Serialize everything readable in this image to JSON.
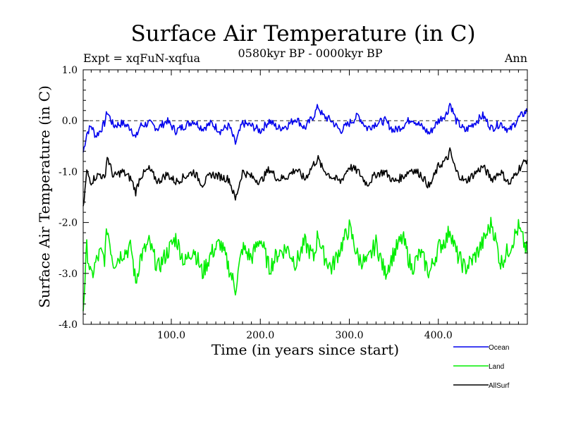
{
  "chart_data": {
    "type": "line",
    "title": "Surface Air Temperature (in C)",
    "subtitle_left": "Expt = xqFuN-xqfua",
    "subtitle_center": "0580kyr BP - 0000kyr BP",
    "subtitle_right": "Ann",
    "xlabel": "Time (in years since start)",
    "ylabel": "Surface Air Temperature (in C)",
    "xlim": [
      1,
      500
    ],
    "ylim": [
      -4.0,
      1.0
    ],
    "x_ticks": [
      100,
      200,
      300,
      400
    ],
    "x_tick_labels": [
      "100.0",
      "200.0",
      "300.0",
      "400.0"
    ],
    "y_ticks": [
      1.0,
      0.0,
      -1.0,
      -2.0,
      -3.0,
      -4.0
    ],
    "y_tick_labels": [
      "1.0",
      "0.0",
      "-1.0",
      "-2.0",
      "-3.0",
      "-4.0"
    ],
    "reference_line": 0.0,
    "legend_position": "bottom-right, outside plot",
    "series": [
      {
        "name": "Ocean",
        "color": "#0000ee",
        "x": [
          1,
          5,
          10,
          15,
          20,
          25,
          28,
          35,
          45,
          55,
          60,
          65,
          75,
          85,
          95,
          105,
          115,
          125,
          135,
          145,
          155,
          165,
          172,
          180,
          190,
          200,
          210,
          220,
          230,
          240,
          250,
          260,
          265,
          270,
          280,
          290,
          300,
          310,
          320,
          330,
          340,
          350,
          360,
          370,
          380,
          390,
          400,
          410,
          413,
          420,
          430,
          440,
          450,
          460,
          470,
          480,
          490,
          500
        ],
        "values": [
          -0.62,
          -0.25,
          -0.1,
          -0.3,
          -0.2,
          -0.05,
          0.18,
          -0.1,
          -0.05,
          -0.15,
          -0.35,
          -0.1,
          -0.05,
          -0.15,
          0.0,
          -0.2,
          -0.1,
          0.0,
          -0.15,
          -0.05,
          -0.2,
          -0.1,
          -0.45,
          -0.05,
          -0.1,
          -0.2,
          0.0,
          -0.15,
          -0.1,
          0.05,
          -0.15,
          0.1,
          0.28,
          0.1,
          0.0,
          -0.2,
          -0.05,
          0.1,
          -0.15,
          -0.05,
          0.0,
          -0.2,
          -0.1,
          0.05,
          -0.1,
          -0.25,
          0.0,
          0.15,
          0.35,
          0.0,
          -0.2,
          -0.05,
          0.1,
          -0.15,
          -0.05,
          -0.2,
          0.05,
          0.2
        ]
      },
      {
        "name": "Land",
        "color": "#00ee00",
        "x": [
          1,
          5,
          10,
          15,
          20,
          25,
          28,
          35,
          45,
          55,
          60,
          65,
          75,
          85,
          95,
          105,
          115,
          125,
          135,
          145,
          155,
          165,
          172,
          180,
          190,
          200,
          210,
          220,
          230,
          240,
          250,
          260,
          265,
          270,
          280,
          290,
          300,
          310,
          320,
          330,
          340,
          350,
          360,
          370,
          380,
          390,
          400,
          410,
          413,
          420,
          430,
          440,
          450,
          460,
          470,
          480,
          490,
          500
        ],
        "values": [
          -3.7,
          -2.5,
          -3.1,
          -2.8,
          -2.6,
          -2.7,
          -2.1,
          -2.8,
          -2.6,
          -2.5,
          -3.2,
          -2.7,
          -2.4,
          -2.9,
          -2.6,
          -2.3,
          -2.8,
          -2.5,
          -3.0,
          -2.6,
          -2.4,
          -2.9,
          -3.3,
          -2.5,
          -2.7,
          -2.3,
          -2.9,
          -2.6,
          -2.5,
          -2.8,
          -2.4,
          -2.7,
          -2.2,
          -2.6,
          -2.9,
          -2.5,
          -2.1,
          -2.7,
          -2.8,
          -2.4,
          -3.0,
          -2.6,
          -2.3,
          -2.9,
          -2.6,
          -3.0,
          -2.5,
          -2.3,
          -2.1,
          -2.6,
          -2.9,
          -2.7,
          -2.4,
          -2.0,
          -2.8,
          -2.5,
          -2.1,
          -2.6
        ]
      },
      {
        "name": "AllSurf",
        "color": "#000000",
        "x": [
          1,
          5,
          10,
          15,
          20,
          25,
          28,
          35,
          45,
          55,
          60,
          65,
          75,
          85,
          95,
          105,
          115,
          125,
          135,
          145,
          155,
          165,
          172,
          180,
          190,
          200,
          210,
          220,
          230,
          240,
          250,
          260,
          265,
          270,
          280,
          290,
          300,
          310,
          320,
          330,
          340,
          350,
          360,
          370,
          380,
          390,
          400,
          410,
          413,
          420,
          430,
          440,
          450,
          460,
          470,
          480,
          490,
          500
        ],
        "values": [
          -1.75,
          -1.0,
          -1.2,
          -1.1,
          -1.05,
          -1.15,
          -0.7,
          -1.1,
          -1.0,
          -1.15,
          -1.4,
          -1.1,
          -0.95,
          -1.2,
          -1.05,
          -1.2,
          -1.1,
          -1.0,
          -1.25,
          -1.05,
          -1.1,
          -1.15,
          -1.55,
          -1.0,
          -1.1,
          -1.2,
          -0.95,
          -1.15,
          -1.1,
          -0.95,
          -1.15,
          -0.85,
          -0.75,
          -0.95,
          -1.1,
          -1.2,
          -0.9,
          -1.0,
          -1.25,
          -1.05,
          -1.0,
          -1.2,
          -1.1,
          -0.95,
          -1.05,
          -1.3,
          -0.9,
          -0.75,
          -0.6,
          -1.0,
          -1.2,
          -1.05,
          -0.9,
          -1.15,
          -1.0,
          -1.25,
          -0.95,
          -0.75
        ]
      }
    ]
  }
}
